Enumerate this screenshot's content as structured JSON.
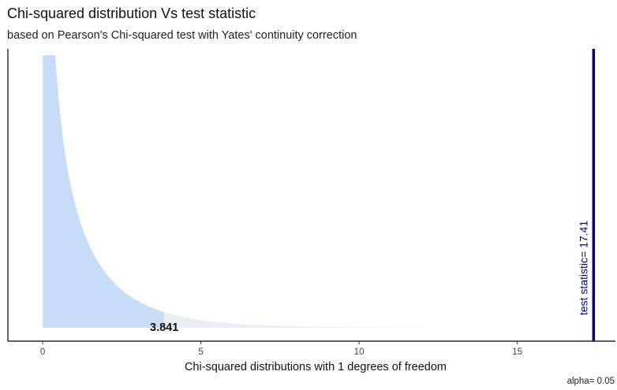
{
  "chart_data": {
    "type": "area",
    "title": "Chi-squared distribution Vs test statistic",
    "subtitle": "based on Pearson's Chi-squared test with Yates' continuity correction",
    "xlabel": "Chi-squared distributions with 1 degrees of freedom",
    "ylabel": "",
    "caption": "alpha= 0.05",
    "degrees_of_freedom": 1,
    "critical_value": 3.841,
    "critical_label": "3.841",
    "test_statistic": 17.41,
    "test_statistic_label": "test statistic= 17.41",
    "xlim": [
      -1.1,
      18.1
    ],
    "x_ticks": [
      0,
      5,
      10,
      15
    ],
    "x_tick_labels": [
      "0",
      "5",
      "10",
      "15"
    ],
    "y_axis_shown": false,
    "grid": false,
    "colors": {
      "density_fill": "#c6dcf7",
      "rejection_fill": "#e9eef5",
      "test_statistic_line": "#00008b",
      "axis": "#000000"
    }
  }
}
